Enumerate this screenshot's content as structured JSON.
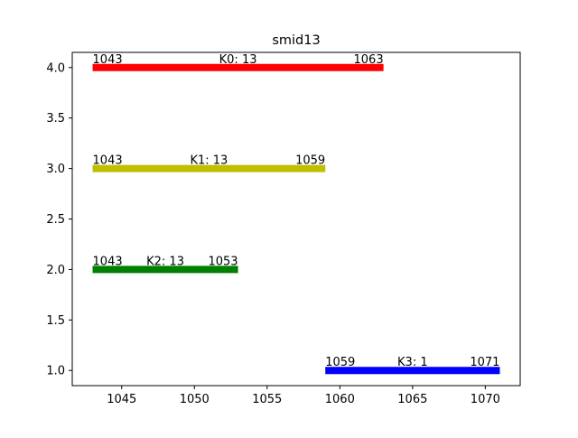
{
  "chart_data": {
    "type": "bar",
    "orientation": "horizontal-range",
    "title": "smid13",
    "xlabel": "",
    "ylabel": "",
    "xlim": [
      1041.6,
      1072.4
    ],
    "ylim": [
      0.85,
      4.15
    ],
    "xticks": [
      1045,
      1050,
      1055,
      1060,
      1065,
      1070
    ],
    "yticks": [
      1.0,
      1.5,
      2.0,
      2.5,
      3.0,
      3.5,
      4.0
    ],
    "xtick_labels": [
      "1045",
      "1050",
      "1055",
      "1060",
      "1065",
      "1070"
    ],
    "ytick_labels": [
      "1.0",
      "1.5",
      "2.0",
      "2.5",
      "3.0",
      "3.5",
      "4.0"
    ],
    "grid": false,
    "segments": [
      {
        "y": 4.0,
        "start": 1043,
        "end": 1063,
        "label": "K0: 13",
        "start_label": "1043",
        "end_label": "1063",
        "color": "#ff0000"
      },
      {
        "y": 3.0,
        "start": 1043,
        "end": 1059,
        "label": "K1: 13",
        "start_label": "1043",
        "end_label": "1059",
        "color": "#bfbf00"
      },
      {
        "y": 2.0,
        "start": 1043,
        "end": 1053,
        "label": "K2: 13",
        "start_label": "1043",
        "end_label": "1053",
        "color": "#008000"
      },
      {
        "y": 1.0,
        "start": 1059,
        "end": 1071,
        "label": "K3: 1",
        "start_label": "1059",
        "end_label": "1071",
        "color": "#0000ff"
      }
    ]
  }
}
